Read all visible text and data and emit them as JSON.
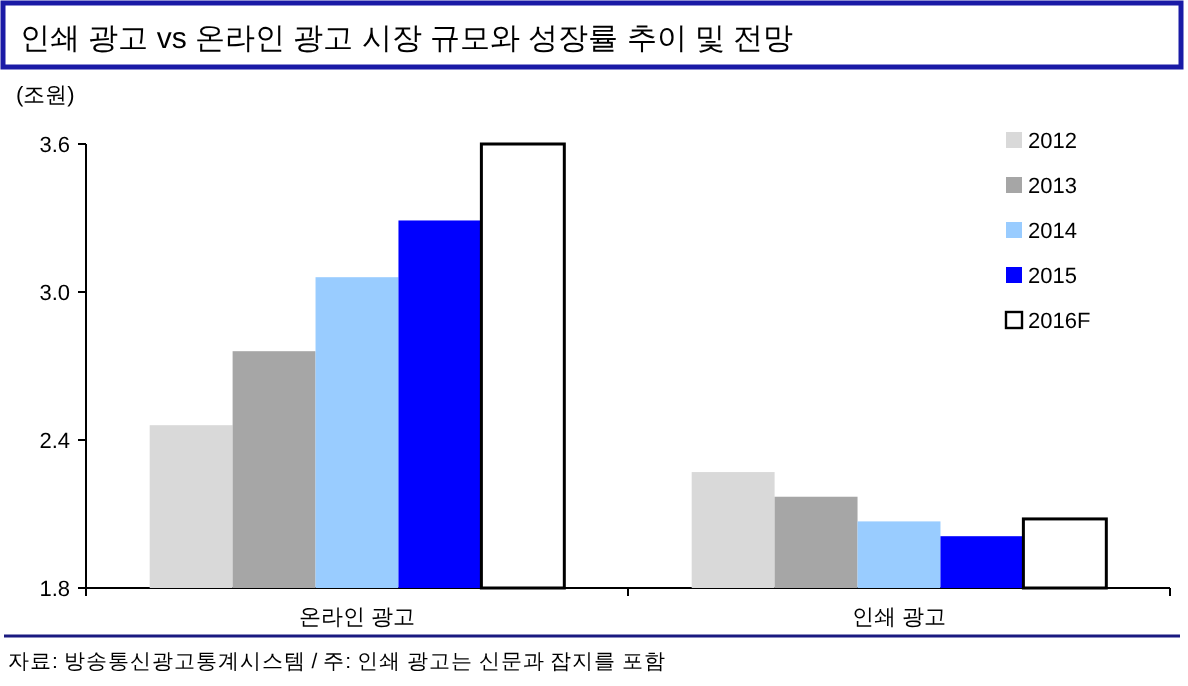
{
  "chart_data": {
    "type": "bar",
    "title": "인쇄 광고 vs 온라인 광고 시장 규모와 성장률 추이 및 전망",
    "ylabel": "(조원)",
    "categories": [
      "온라인 광고",
      "인쇄 광고"
    ],
    "series": [
      {
        "name": "2012",
        "color": "#d9d9d9",
        "values": [
          2.46,
          2.27
        ]
      },
      {
        "name": "2013",
        "color": "#a6a6a6",
        "values": [
          2.76,
          2.17
        ]
      },
      {
        "name": "2014",
        "color": "#99ccff",
        "values": [
          3.06,
          2.07
        ]
      },
      {
        "name": "2015",
        "color": "#0000ff",
        "values": [
          3.29,
          2.01
        ]
      },
      {
        "name": "2016F",
        "color": "#ffffff",
        "values": [
          3.6,
          2.08
        ]
      }
    ],
    "ylim": [
      1.8,
      3.6
    ],
    "yticks": [
      1.8,
      2.4,
      {
        "value": 3,
        "label": "3.0"
      },
      3.6
    ],
    "grid": false,
    "legend": "top right",
    "annotations": [
      "자료: 방송통신광고통계시스템 / 주: 인쇄 광고는 신문과 잡지를 포함"
    ]
  }
}
